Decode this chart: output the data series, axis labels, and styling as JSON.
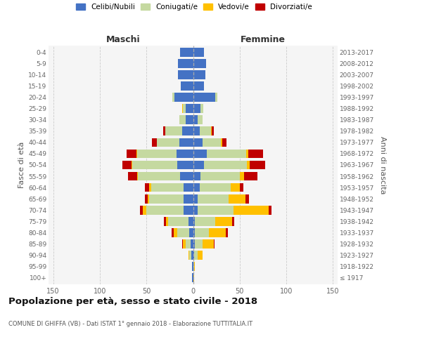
{
  "age_groups": [
    "100+",
    "95-99",
    "90-94",
    "85-89",
    "80-84",
    "75-79",
    "70-74",
    "65-69",
    "60-64",
    "55-59",
    "50-54",
    "45-49",
    "40-44",
    "35-39",
    "30-34",
    "25-29",
    "20-24",
    "15-19",
    "10-14",
    "5-9",
    "0-4"
  ],
  "birth_years": [
    "≤ 1917",
    "1918-1922",
    "1923-1927",
    "1928-1932",
    "1933-1937",
    "1938-1942",
    "1943-1947",
    "1948-1952",
    "1953-1957",
    "1958-1962",
    "1963-1967",
    "1968-1972",
    "1973-1977",
    "1978-1982",
    "1983-1987",
    "1988-1992",
    "1993-1997",
    "1998-2002",
    "2003-2007",
    "2008-2012",
    "2013-2017"
  ],
  "colors": {
    "celibe": "#4472c4",
    "coniugato": "#c5d9a0",
    "vedovo": "#ffc000",
    "divorziato": "#c00000"
  },
  "maschi": {
    "celibe": [
      1,
      1,
      2,
      3,
      4,
      5,
      10,
      10,
      10,
      14,
      17,
      18,
      15,
      12,
      8,
      8,
      20,
      13,
      16,
      16,
      14
    ],
    "coniugato": [
      0,
      0,
      2,
      5,
      13,
      22,
      40,
      37,
      35,
      45,
      48,
      42,
      24,
      18,
      7,
      3,
      2,
      0,
      0,
      0,
      0
    ],
    "vedovo": [
      0,
      0,
      1,
      3,
      4,
      2,
      4,
      2,
      2,
      1,
      1,
      1,
      0,
      0,
      0,
      1,
      0,
      0,
      0,
      0,
      0
    ],
    "divorziato": [
      0,
      0,
      0,
      1,
      2,
      2,
      3,
      3,
      5,
      10,
      10,
      10,
      5,
      2,
      0,
      0,
      0,
      0,
      0,
      0,
      0
    ]
  },
  "femmine": {
    "nubile": [
      0,
      0,
      1,
      2,
      2,
      2,
      5,
      5,
      7,
      8,
      12,
      15,
      10,
      7,
      5,
      8,
      24,
      12,
      13,
      14,
      12
    ],
    "coniugata": [
      0,
      1,
      4,
      8,
      15,
      22,
      38,
      33,
      33,
      42,
      46,
      42,
      20,
      12,
      5,
      3,
      2,
      0,
      0,
      0,
      0
    ],
    "vedova": [
      1,
      1,
      5,
      12,
      18,
      18,
      38,
      18,
      10,
      5,
      3,
      2,
      1,
      1,
      0,
      0,
      0,
      0,
      0,
      0,
      0
    ],
    "divorziata": [
      0,
      0,
      0,
      1,
      2,
      2,
      3,
      4,
      4,
      14,
      16,
      16,
      5,
      2,
      0,
      0,
      0,
      0,
      0,
      0,
      0
    ]
  },
  "xlim": 155,
  "title": "Popolazione per età, sesso e stato civile - 2018",
  "subtitle": "COMUNE DI GHIFFA (VB) - Dati ISTAT 1° gennaio 2018 - Elaborazione TUTTITALIA.IT",
  "ylabel_left": "Fasce di età",
  "ylabel_right": "Anni di nascita",
  "xlabel_left": "Maschi",
  "xlabel_right": "Femmine",
  "legend_labels": [
    "Celibi/Nubili",
    "Coniugati/e",
    "Vedovi/e",
    "Divorziati/e"
  ],
  "bg_color": "#f5f5f5",
  "grid_color": "#cccccc",
  "tick_color": "#666666"
}
